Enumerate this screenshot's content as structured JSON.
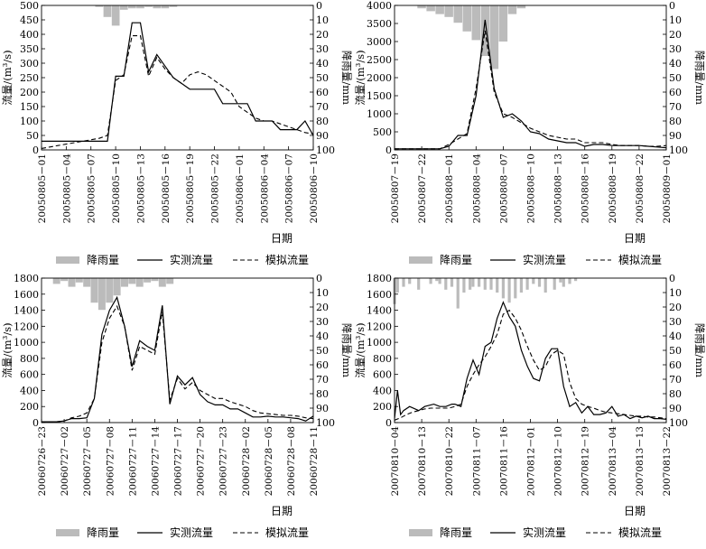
{
  "legend": {
    "rain": "降雨量",
    "observed": "实测流量",
    "simulated": "模拟流量"
  },
  "colors": {
    "rain": "#bbbbbb",
    "observed": "#000000",
    "simulated": "#000000"
  },
  "chart_data": [
    {
      "type": "line",
      "ylabel": "流量/(m³/s)",
      "y2label": "降雨量/mm",
      "xlabel": "日期",
      "ylim": [
        0,
        500
      ],
      "yticks": [
        0,
        50,
        100,
        150,
        200,
        250,
        300,
        350,
        400,
        450,
        500
      ],
      "y2ticks": [
        0,
        10,
        20,
        30,
        40,
        50,
        60,
        70,
        80,
        90,
        100
      ],
      "xticklabels": [
        "20050805－01",
        "20050805－04",
        "20050805－07",
        "20050805－10",
        "20050805－13",
        "20050805－16",
        "20050805－19",
        "20050805－22",
        "20050806－01",
        "20050806－04",
        "20050806－07",
        "20050806－10"
      ],
      "xrange": [
        0,
        33
      ],
      "rain": {
        "x": [
          7,
          8,
          9,
          10,
          11,
          12,
          13,
          14,
          15,
          16
        ],
        "values": [
          1,
          8,
          14,
          3,
          2,
          2,
          1,
          2,
          2,
          1
        ]
      },
      "observed": {
        "x": [
          0,
          1,
          2,
          3,
          4,
          5,
          6,
          7,
          8,
          9,
          10,
          11,
          12,
          13,
          14,
          15,
          16,
          17,
          18,
          19,
          20,
          21,
          22,
          23,
          24,
          25,
          26,
          27,
          28,
          29,
          30,
          31,
          32,
          33
        ],
        "values": [
          30,
          30,
          30,
          30,
          30,
          30,
          30,
          30,
          30,
          255,
          255,
          440,
          440,
          270,
          330,
          290,
          250,
          230,
          210,
          210,
          210,
          210,
          160,
          160,
          160,
          160,
          100,
          100,
          100,
          70,
          70,
          70,
          100,
          50
        ]
      },
      "simulated": {
        "x": [
          0,
          1,
          2,
          3,
          4,
          5,
          6,
          7,
          8,
          9,
          10,
          11,
          12,
          13,
          14,
          15,
          16,
          17,
          18,
          19,
          20,
          21,
          22,
          23,
          24,
          25,
          26,
          27,
          28,
          29,
          30,
          31,
          32,
          33
        ],
        "values": [
          5,
          10,
          15,
          20,
          25,
          30,
          35,
          40,
          50,
          240,
          260,
          395,
          395,
          255,
          320,
          280,
          250,
          230,
          260,
          270,
          260,
          240,
          220,
          200,
          150,
          130,
          110,
          100,
          100,
          90,
          80,
          70,
          60,
          55
        ]
      }
    },
    {
      "type": "line",
      "ylabel": "流量/(m³/s)",
      "y2label": "降雨量/mm",
      "xlabel": "日期",
      "ylim": [
        0,
        4000
      ],
      "yticks": [
        0,
        500,
        1000,
        1500,
        2000,
        2500,
        3000,
        3500,
        4000
      ],
      "y2ticks": [
        0,
        10,
        20,
        30,
        40,
        50,
        60,
        70,
        80,
        90,
        100
      ],
      "xticklabels": [
        "20050807－19",
        "20050807－22",
        "20050808－01",
        "20050808－04",
        "20050808－07",
        "20050808－10",
        "20050808－13",
        "20050808－16",
        "20050808－19",
        "20050808－22",
        "20050809－01"
      ],
      "xrange": [
        0,
        30
      ],
      "rain": {
        "x": [
          3,
          4,
          5,
          6,
          7,
          8,
          9,
          10,
          11,
          12,
          13,
          14
        ],
        "values": [
          2,
          4,
          6,
          8,
          12,
          18,
          24,
          35,
          44,
          25,
          6,
          2
        ]
      },
      "observed": {
        "x": [
          0,
          1,
          2,
          3,
          4,
          5,
          6,
          7,
          8,
          9,
          10,
          11,
          12,
          13,
          14,
          15,
          16,
          17,
          18,
          19,
          20,
          21,
          22,
          23,
          24,
          25,
          26,
          27,
          28,
          29,
          30
        ],
        "values": [
          30,
          30,
          30,
          30,
          30,
          30,
          100,
          400,
          400,
          1500,
          3600,
          1700,
          900,
          1000,
          800,
          500,
          450,
          300,
          250,
          200,
          200,
          100,
          150,
          150,
          120,
          120,
          120,
          120,
          100,
          80,
          60
        ]
      },
      "simulated": {
        "x": [
          0,
          1,
          2,
          3,
          4,
          5,
          6,
          7,
          8,
          9,
          10,
          11,
          12,
          13,
          14,
          15,
          16,
          17,
          18,
          19,
          20,
          21,
          22,
          23,
          24,
          25,
          26,
          27,
          28,
          29,
          30
        ],
        "values": [
          30,
          30,
          30,
          30,
          30,
          30,
          150,
          300,
          450,
          1700,
          3300,
          1600,
          1000,
          900,
          750,
          600,
          500,
          400,
          350,
          300,
          300,
          200,
          200,
          200,
          150,
          120,
          120,
          120,
          100,
          100,
          120
        ]
      }
    },
    {
      "type": "line",
      "ylabel": "流量/(m³/s)",
      "y2label": "降雨量/mm",
      "xlabel": "日期",
      "ylim": [
        0,
        1800
      ],
      "yticks": [
        0,
        200,
        400,
        600,
        800,
        1000,
        1200,
        1400,
        1600,
        1800
      ],
      "y2ticks": [
        0,
        10,
        20,
        30,
        40,
        50,
        60,
        70,
        80,
        90,
        100
      ],
      "xticklabels": [
        "20060726－23",
        "20060727－02",
        "20060727－05",
        "20060727－08",
        "20060727－11",
        "20060727－14",
        "20060727－17",
        "20060727－20",
        "20060727－23",
        "20060728－02",
        "20060728－05",
        "20060728－08",
        "20060728－11"
      ],
      "xrange": [
        0,
        36
      ],
      "rain": {
        "x": [
          2,
          3,
          4,
          5,
          6,
          7,
          8,
          9,
          10,
          11,
          12,
          13,
          14,
          15,
          16,
          17
        ],
        "values": [
          4,
          2,
          6,
          3,
          6,
          17,
          22,
          17,
          12,
          6,
          4,
          6,
          3,
          2,
          6,
          4
        ]
      },
      "observed": {
        "x": [
          0,
          1,
          2,
          3,
          4,
          5,
          6,
          7,
          8,
          9,
          10,
          11,
          12,
          13,
          14,
          15,
          16,
          17,
          18,
          19,
          20,
          21,
          22,
          23,
          24,
          25,
          26,
          27,
          28,
          29,
          30,
          31,
          32,
          33,
          34,
          35,
          36
        ],
        "values": [
          10,
          10,
          10,
          20,
          50,
          50,
          60,
          300,
          1100,
          1400,
          1560,
          1200,
          700,
          1020,
          950,
          900,
          1460,
          230,
          580,
          470,
          560,
          350,
          260,
          220,
          220,
          170,
          170,
          120,
          70,
          70,
          80,
          70,
          70,
          60,
          50,
          20,
          80
        ]
      },
      "simulated": {
        "x": [
          0,
          1,
          2,
          3,
          4,
          5,
          6,
          7,
          8,
          9,
          10,
          11,
          12,
          13,
          14,
          15,
          16,
          17,
          18,
          19,
          20,
          21,
          22,
          23,
          24,
          25,
          26,
          27,
          28,
          29,
          30,
          31,
          32,
          33,
          34,
          35,
          36
        ],
        "values": [
          10,
          10,
          10,
          20,
          60,
          80,
          120,
          300,
          1000,
          1300,
          1450,
          1200,
          650,
          950,
          900,
          850,
          1380,
          280,
          550,
          420,
          500,
          400,
          350,
          300,
          300,
          260,
          230,
          200,
          150,
          120,
          110,
          100,
          90,
          90,
          80,
          60,
          50
        ]
      }
    },
    {
      "type": "line",
      "ylabel": "流量/(m³/s)",
      "y2label": "降雨量/mm",
      "xlabel": "日期",
      "ylim": [
        0,
        1800
      ],
      "yticks": [
        0,
        200,
        400,
        600,
        800,
        1000,
        1200,
        1400,
        1600,
        1800
      ],
      "y2ticks": [
        0,
        10,
        20,
        30,
        40,
        50,
        60,
        70,
        80,
        90,
        100
      ],
      "xticklabels": [
        "20070810－04",
        "20070810－13",
        "20070810－22",
        "20070811－07",
        "20070811－16",
        "20070812－01",
        "20070812－10",
        "20070812－19",
        "20070813－04",
        "20070813－13",
        "20070813－22"
      ],
      "xrange": [
        0,
        90
      ],
      "rain": {
        "x": [
          0,
          1,
          3,
          5,
          8,
          12,
          14,
          15,
          17,
          19,
          21,
          23,
          25,
          26,
          28,
          30,
          32,
          34,
          36,
          38,
          40,
          42,
          44,
          46,
          48,
          50,
          53,
          55,
          56,
          58,
          60
        ],
        "values": [
          18,
          10,
          6,
          4,
          8,
          4,
          2,
          4,
          8,
          6,
          21,
          10,
          8,
          6,
          6,
          8,
          8,
          10,
          14,
          17,
          14,
          10,
          8,
          4,
          6,
          10,
          8,
          3,
          6,
          4,
          2
        ]
      },
      "observed": {
        "x": [
          0,
          1,
          2,
          3,
          5,
          8,
          10,
          13,
          15,
          17,
          19,
          20,
          22,
          24,
          26,
          28,
          30,
          32,
          34,
          36,
          38,
          40,
          42,
          44,
          46,
          48,
          50,
          52,
          54,
          56,
          58,
          60,
          62,
          64,
          66,
          68,
          70,
          72,
          74,
          76,
          78,
          80,
          82,
          84,
          86,
          88,
          90
        ],
        "values": [
          50,
          400,
          100,
          150,
          200,
          150,
          200,
          230,
          200,
          200,
          230,
          230,
          200,
          550,
          780,
          600,
          950,
          1000,
          1300,
          1500,
          1320,
          1200,
          900,
          700,
          550,
          520,
          800,
          920,
          920,
          450,
          200,
          250,
          120,
          200,
          100,
          100,
          120,
          200,
          80,
          100,
          50,
          80,
          60,
          80,
          50,
          50,
          40
        ]
      },
      "simulated": {
        "x": [
          0,
          2,
          4,
          6,
          8,
          10,
          12,
          14,
          16,
          18,
          20,
          22,
          24,
          26,
          28,
          30,
          32,
          34,
          36,
          38,
          40,
          42,
          44,
          46,
          48,
          50,
          52,
          54,
          56,
          58,
          60,
          62,
          64,
          66,
          68,
          70,
          72,
          74,
          76,
          78,
          80,
          82,
          84,
          86,
          88,
          90
        ],
        "values": [
          30,
          60,
          100,
          130,
          150,
          170,
          180,
          180,
          180,
          180,
          200,
          230,
          450,
          600,
          720,
          820,
          950,
          1100,
          1350,
          1400,
          1300,
          1150,
          950,
          780,
          650,
          700,
          850,
          900,
          850,
          500,
          300,
          230,
          200,
          180,
          150,
          130,
          120,
          110,
          100,
          90,
          80,
          80,
          70,
          70,
          60,
          50
        ]
      }
    }
  ]
}
